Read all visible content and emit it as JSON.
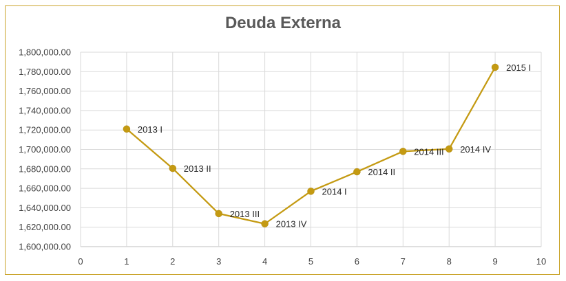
{
  "chart_data": {
    "type": "line",
    "title": "Deuda Externa",
    "xlabel": "",
    "ylabel": "",
    "xlim": [
      0,
      10
    ],
    "ylim": [
      1600000,
      1800000
    ],
    "x_ticks": [
      "0",
      "1",
      "2",
      "3",
      "4",
      "5",
      "6",
      "7",
      "8",
      "9",
      "10"
    ],
    "y_ticks": [
      "1,600,000.00",
      "1,620,000.00",
      "1,640,000.00",
      "1,660,000.00",
      "1,680,000.00",
      "1,700,000.00",
      "1,720,000.00",
      "1,740,000.00",
      "1,760,000.00",
      "1,780,000.00",
      "1,800,000.00"
    ],
    "grid": true,
    "legend": "none",
    "line_color": "#c49a12",
    "series": [
      {
        "x": [
          1,
          2,
          3,
          4,
          5,
          6,
          7,
          8,
          9
        ],
        "y": [
          1721000,
          1680500,
          1634000,
          1623500,
          1657000,
          1677000,
          1698000,
          1700500,
          1784500
        ],
        "labels": [
          "2013 I",
          "2013 II",
          "2013 III",
          "2013 IV",
          "2014 I",
          "2014 II",
          "2014 III",
          "2014 IV",
          "2015 I"
        ]
      }
    ]
  }
}
